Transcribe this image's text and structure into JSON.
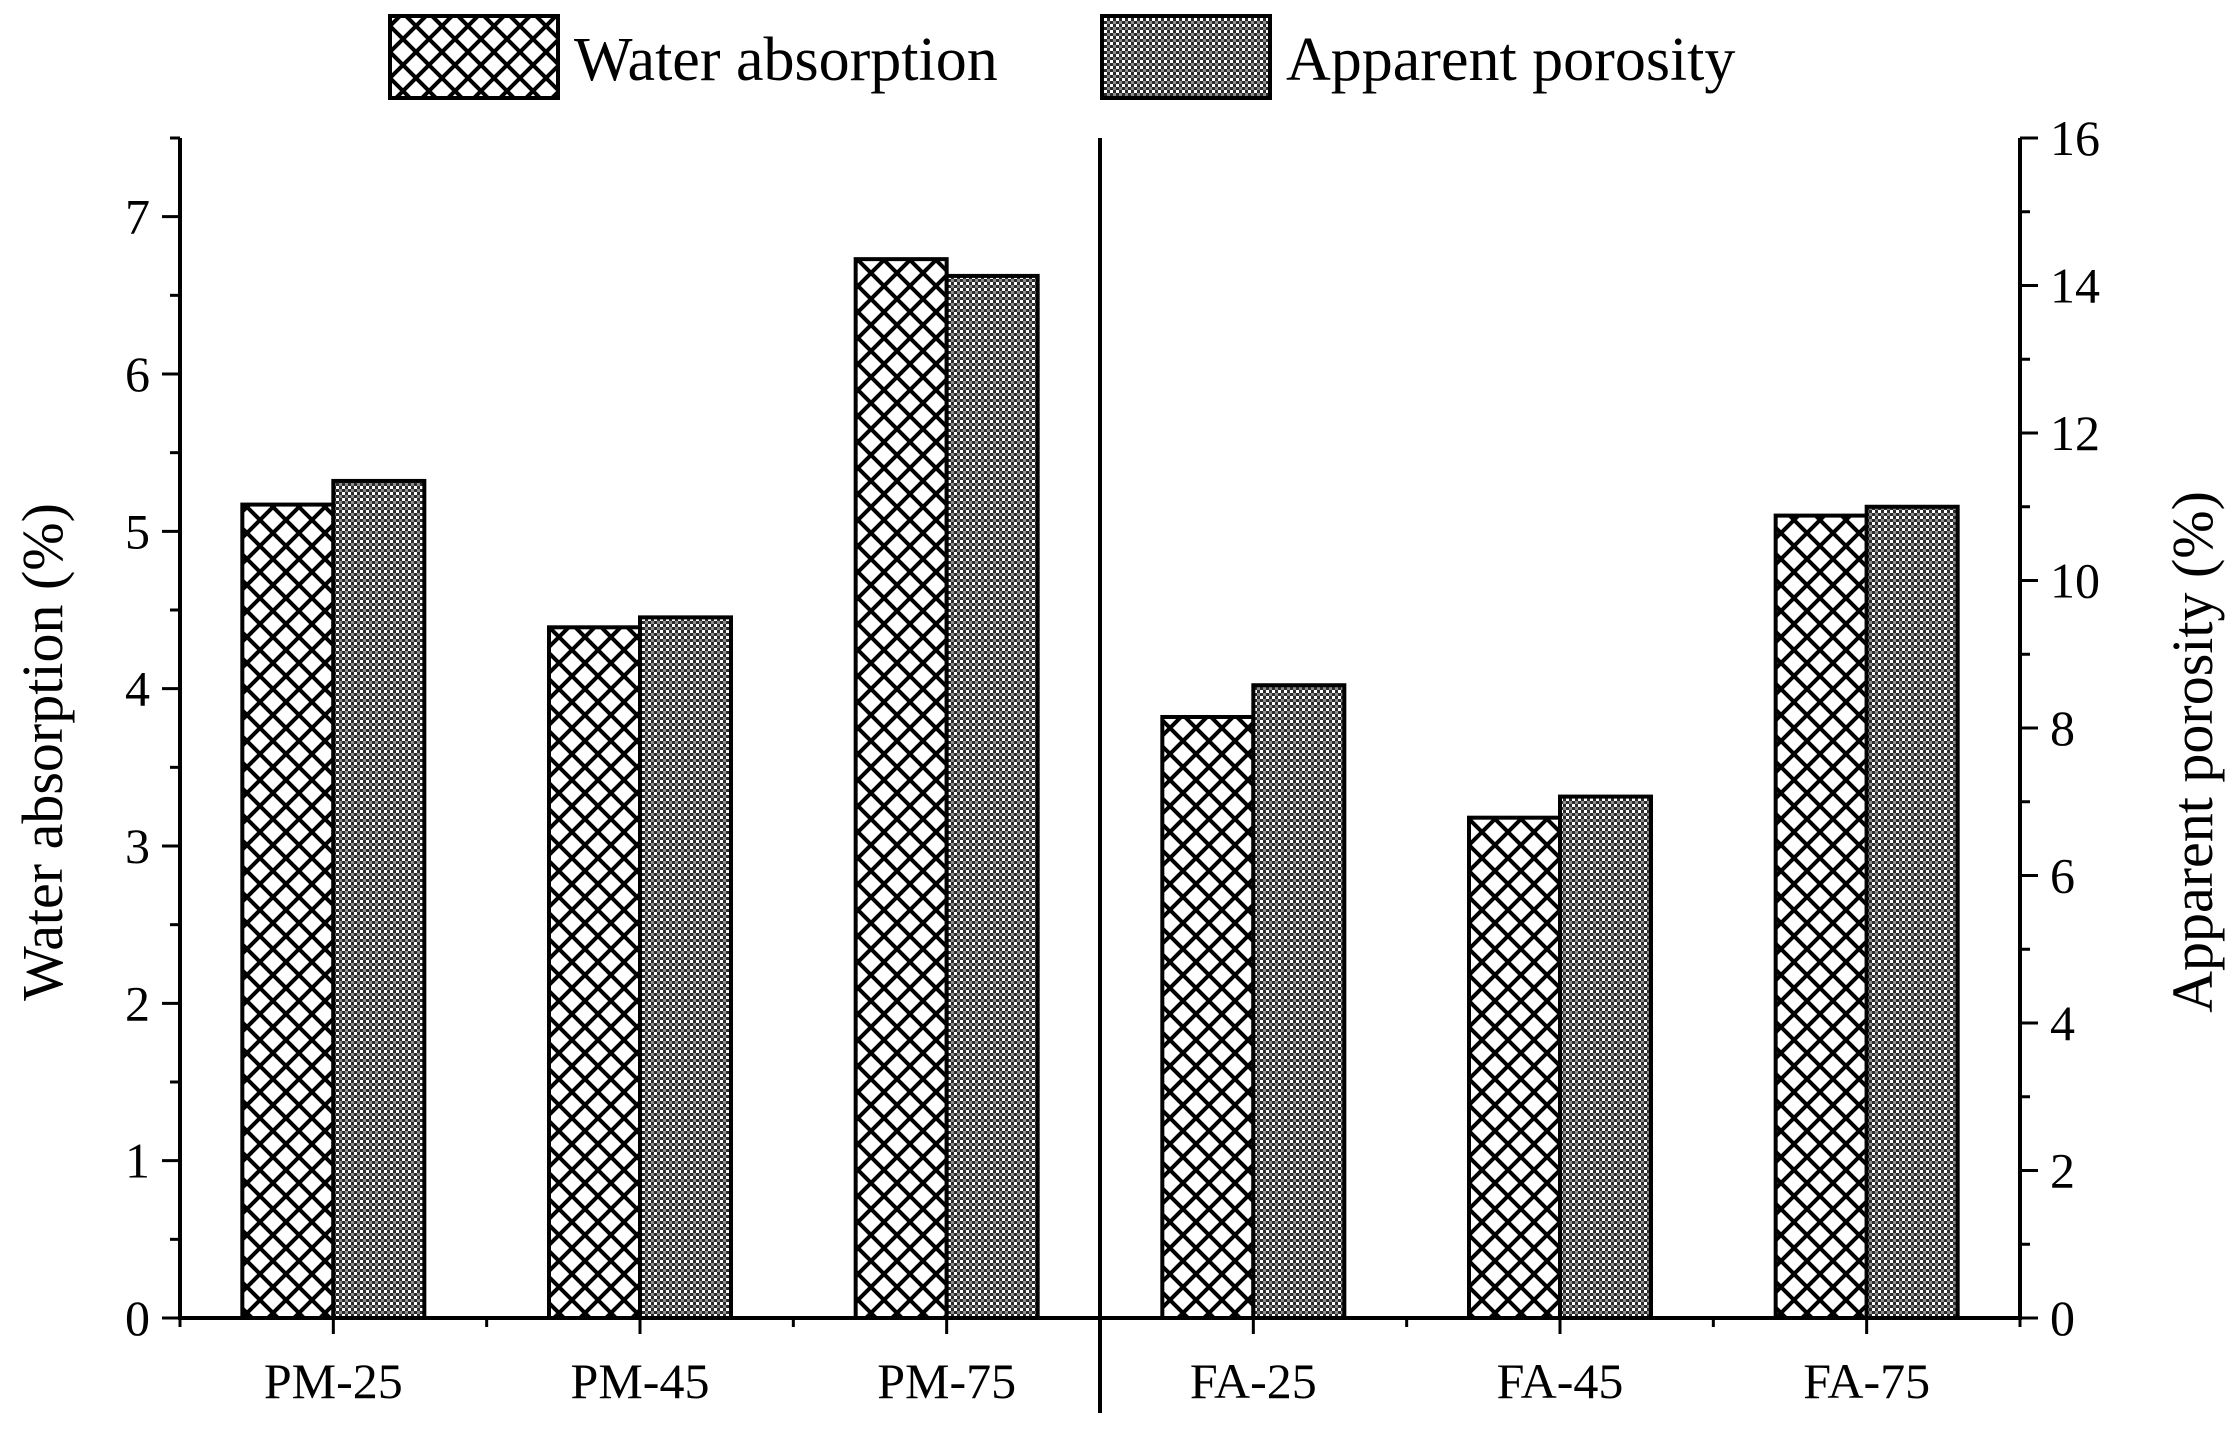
{
  "chart_data": {
    "type": "bar",
    "title": "",
    "categories": [
      "PM-25",
      "PM-45",
      "PM-75",
      "FA-25",
      "FA-45",
      "FA-75"
    ],
    "series": [
      {
        "name": "Water absorption",
        "axis": "left",
        "pattern": "crosshatch",
        "values": [
          5.17,
          4.39,
          6.73,
          3.82,
          3.18,
          5.1
        ]
      },
      {
        "name": "Apparent porosity",
        "axis": "right",
        "pattern": "dotted",
        "values": [
          11.35,
          9.5,
          14.13,
          8.58,
          7.07,
          11.0
        ]
      }
    ],
    "ylabel": "Water absorption (%)",
    "ylabel_right": "Apparent porosity (%)",
    "xlabel": "",
    "ylim": [
      0,
      7.5
    ],
    "ylim_right": [
      0,
      16
    ],
    "yticks": [
      "0",
      "1",
      "2",
      "3",
      "4",
      "5",
      "6",
      "7"
    ],
    "yticks_right": [
      "0",
      "2",
      "4",
      "6",
      "8",
      "10",
      "12",
      "14",
      "16"
    ],
    "separator_after_category": 2,
    "legend_position": "top-center",
    "grid": false
  }
}
